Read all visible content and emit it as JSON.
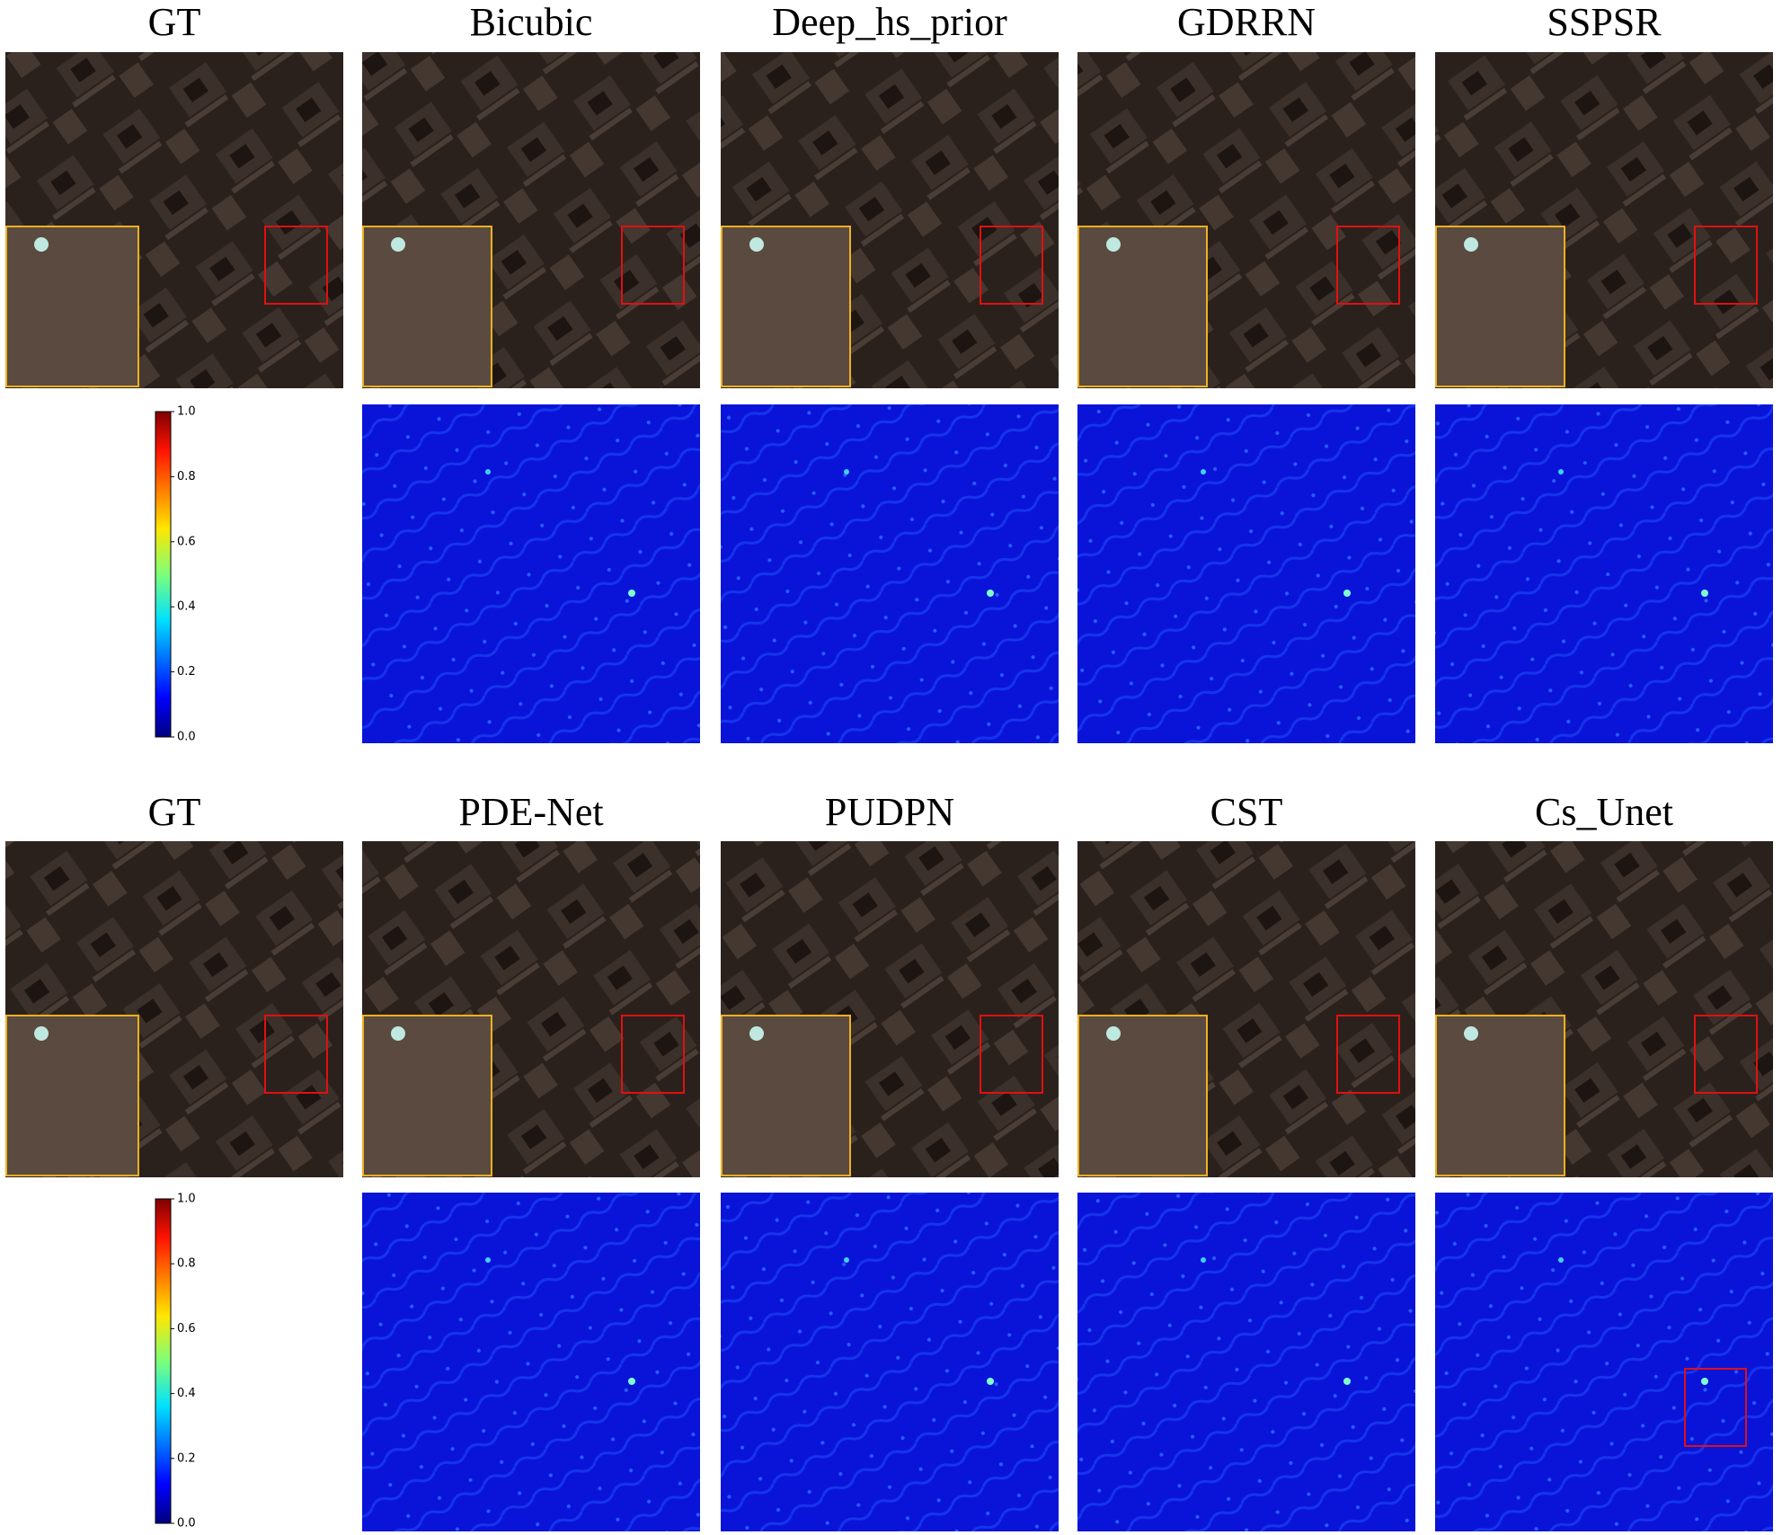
{
  "groups": [
    {
      "titles": [
        "GT",
        "Bicubic",
        "Deep_hs_prior",
        "GDRRN",
        "SSPSR"
      ],
      "colorbar": {
        "ticks": [
          {
            "value": 0,
            "label": "0.0"
          },
          {
            "value": 0.2,
            "label": "0.2"
          },
          {
            "value": 0.4,
            "label": "0.4"
          },
          {
            "value": 0.6,
            "label": "0.6"
          },
          {
            "value": 0.8,
            "label": "0.8"
          },
          {
            "value": 1,
            "label": "1.0"
          }
        ]
      }
    },
    {
      "titles": [
        "GT",
        "PDE-Net",
        "PUDPN",
        "CST",
        "Cs_Unet"
      ],
      "colorbar": {
        "ticks": [
          {
            "value": 0,
            "label": "0.0"
          },
          {
            "value": 0.2,
            "label": "0.2"
          },
          {
            "value": 0.4,
            "label": "0.4"
          },
          {
            "value": 0.6,
            "label": "0.6"
          },
          {
            "value": 0.8,
            "label": "0.8"
          },
          {
            "value": 1,
            "label": "1.0"
          }
        ]
      }
    }
  ]
}
